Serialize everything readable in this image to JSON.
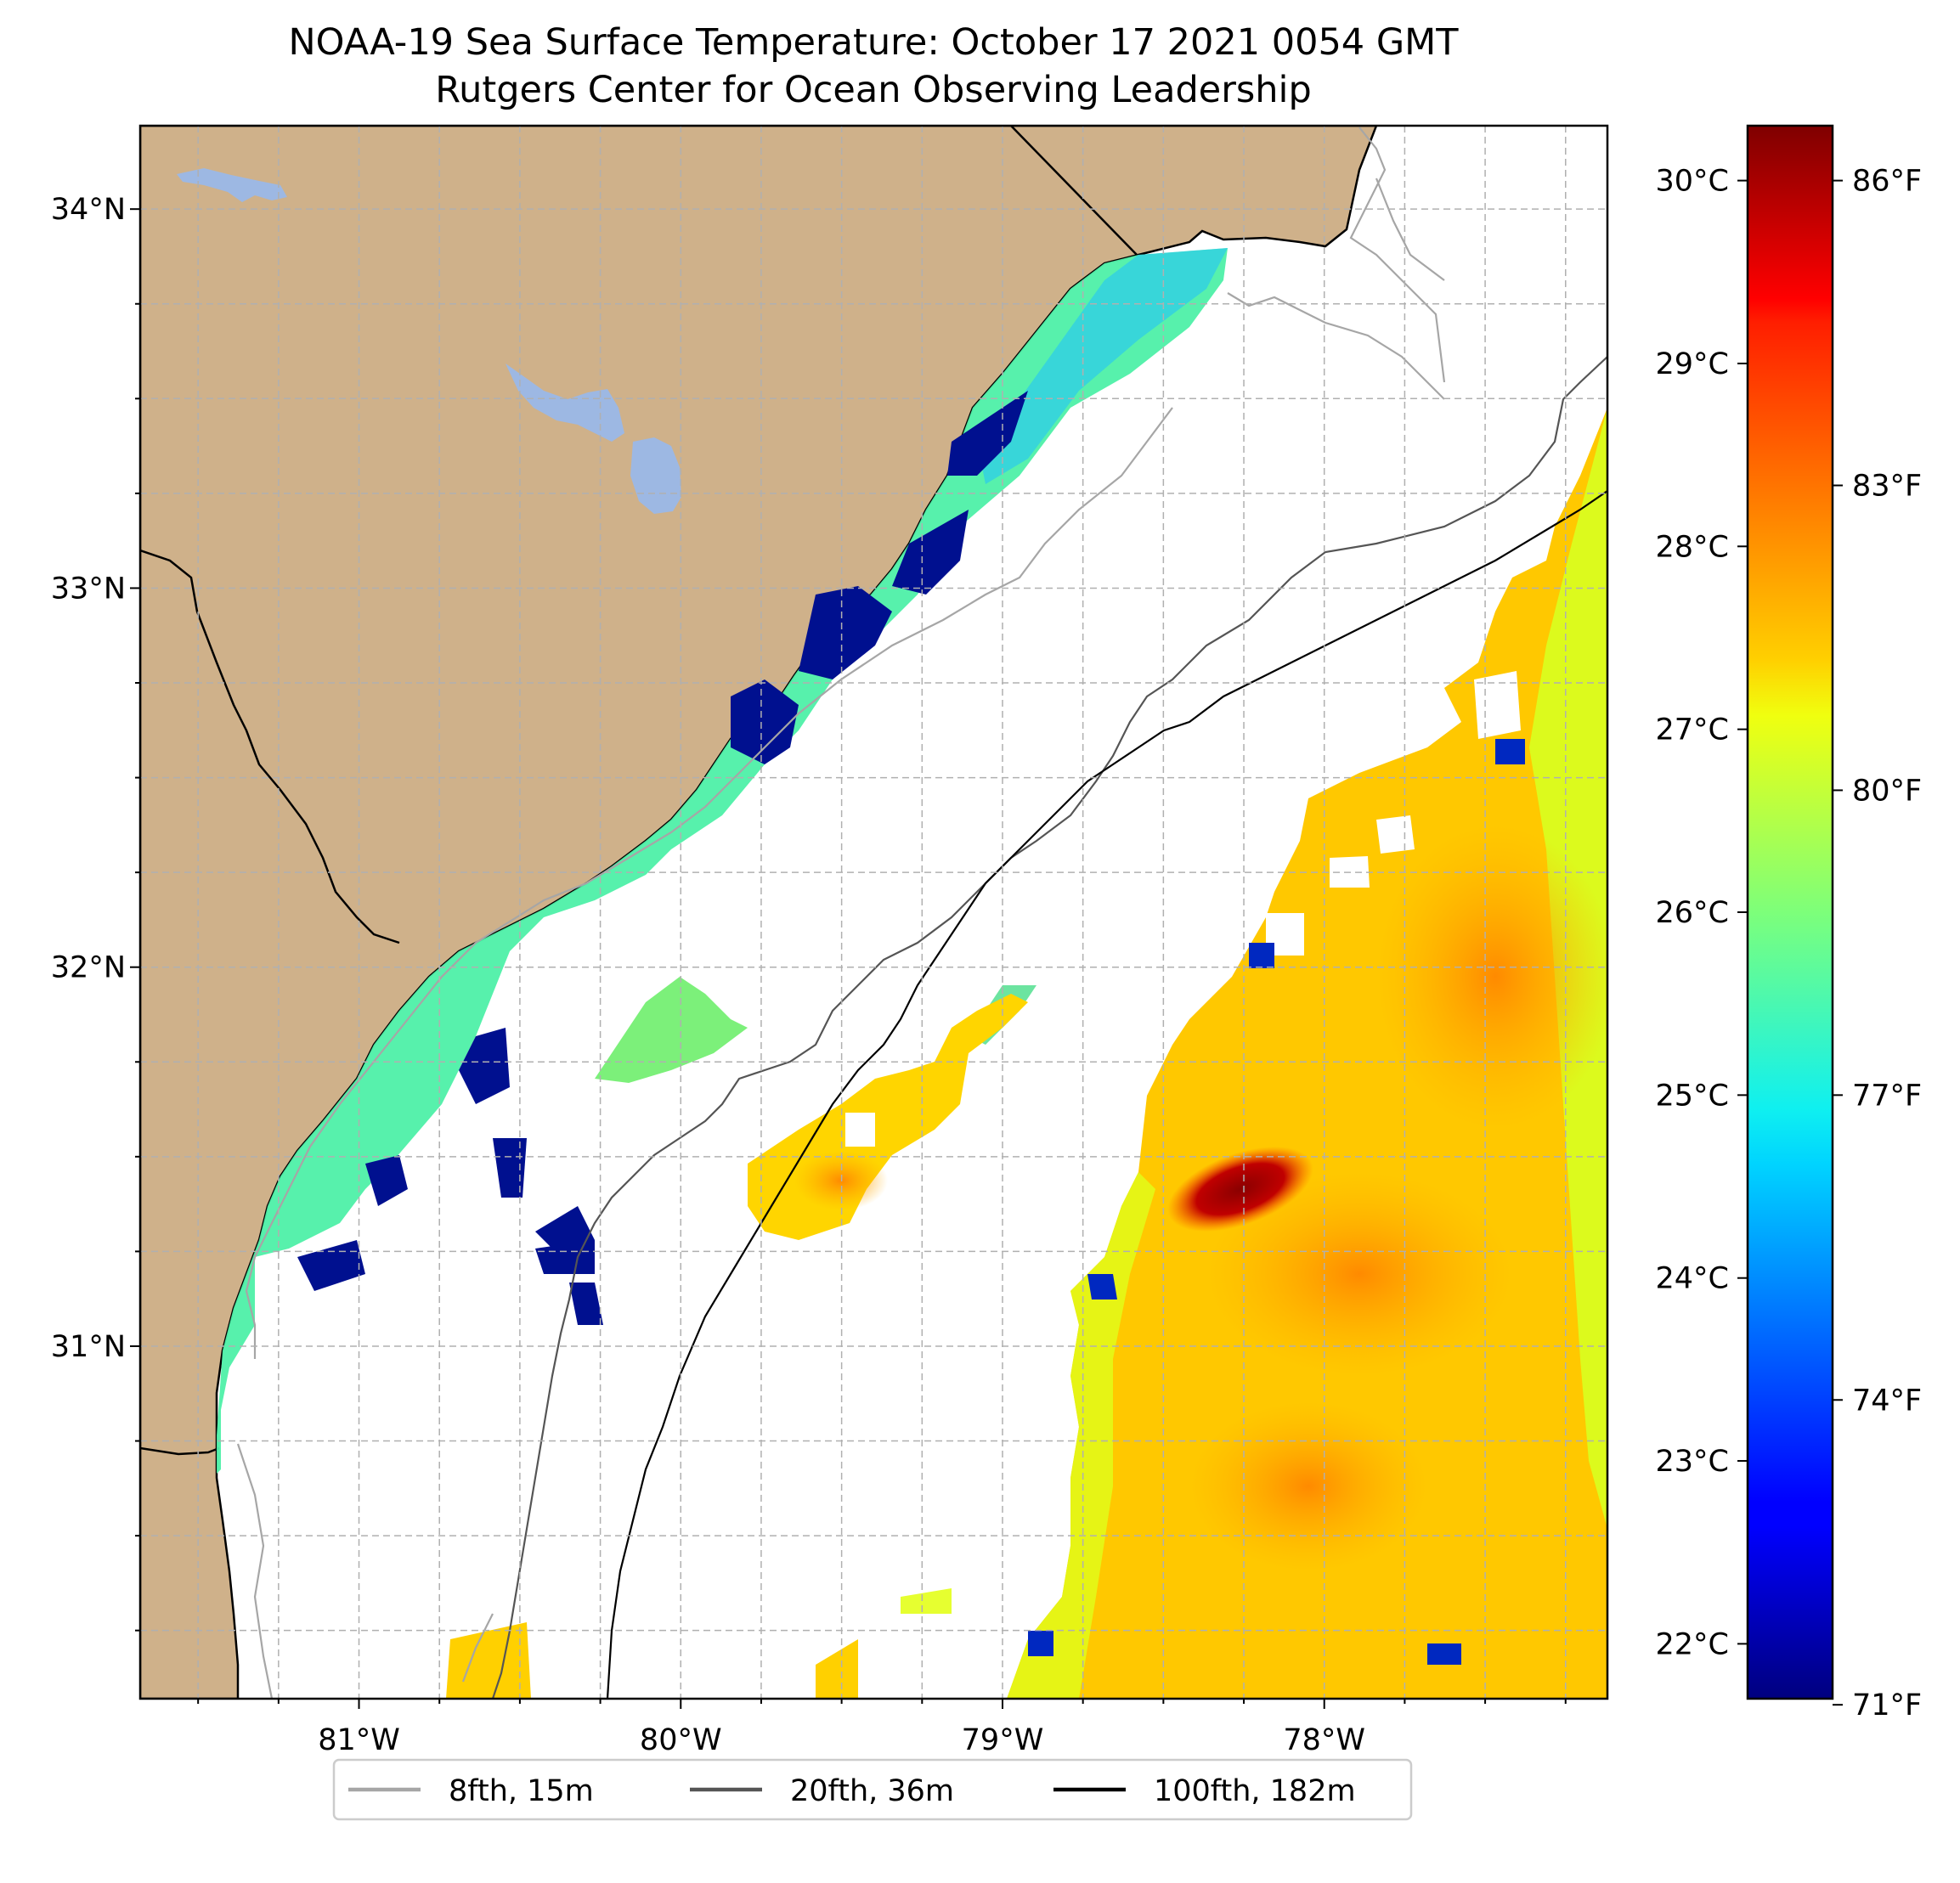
{
  "title": {
    "line1": "NOAA-19 Sea Surface Temperature: October 17 2021 0054 GMT",
    "line2": "Rutgers Center for Ocean Observing Leadership"
  },
  "map": {
    "lon_range": [
      -81.68,
      -77.12
    ],
    "lat_range": [
      30.07,
      34.22
    ],
    "lon_ticks": [
      {
        "value": -81,
        "label": "81°W"
      },
      {
        "value": -80,
        "label": "80°W"
      },
      {
        "value": -79,
        "label": "79°W"
      },
      {
        "value": -78,
        "label": "78°W"
      }
    ],
    "lat_ticks": [
      {
        "value": 31,
        "label": "31°N"
      },
      {
        "value": 32,
        "label": "32°N"
      },
      {
        "value": 33,
        "label": "33°N"
      },
      {
        "value": 34,
        "label": "34°N"
      }
    ],
    "grid": true,
    "colors": {
      "land": "#cfb18a",
      "lakes": "#9db8e3",
      "ocean_missing": "#ffffff",
      "coastline": "#000000",
      "grid": "#b0b0b0"
    }
  },
  "colorbar": {
    "celsius_ticks": [
      "30°C",
      "29°C",
      "28°C",
      "27°C",
      "26°C",
      "25°C",
      "24°C",
      "23°C",
      "22°C"
    ],
    "fahrenheit_ticks": [
      "86°F",
      "83°F",
      "80°F",
      "77°F",
      "74°F",
      "71°F"
    ],
    "colormap": "jet",
    "min_c": 21.7,
    "max_c": 30.3
  },
  "legend": {
    "placement": "bottom-center",
    "items": [
      {
        "label": "8fth, 15m",
        "color": "#a6a6a6"
      },
      {
        "label": "20fth, 36m",
        "color": "#555555"
      },
      {
        "label": "100fth, 182m",
        "color": "#000000"
      }
    ]
  }
}
